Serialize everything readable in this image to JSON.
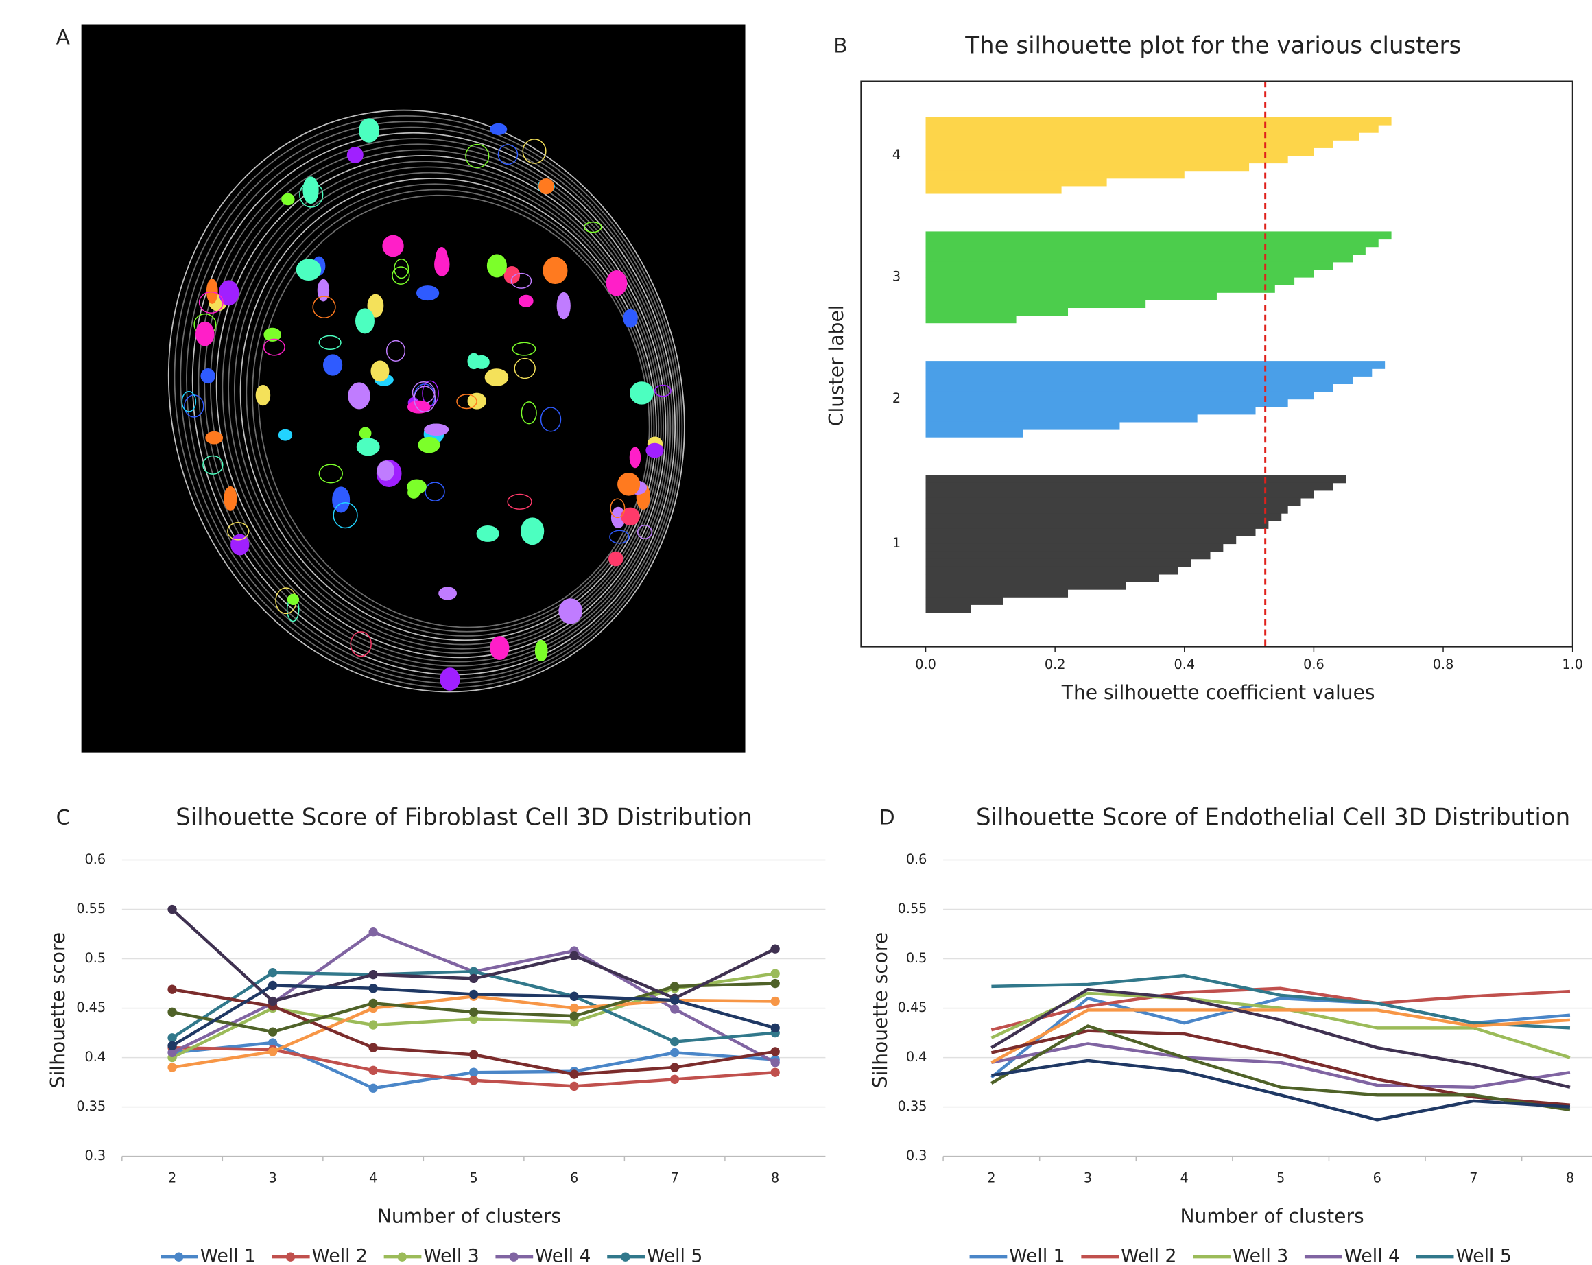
{
  "image_panel": {
    "panel": "A"
  },
  "chart_data": [
    {
      "type": "silhouette",
      "panel": "B",
      "title": "The silhouette plot for the various clusters",
      "x_label": "The silhouette coefficient values",
      "y_label": "Cluster label",
      "xlim": [
        -0.1,
        1.0
      ],
      "xticks": [
        {
          "value": 0,
          "label": "0.0"
        },
        0.2,
        0.4,
        0.6,
        0.8,
        {
          "value": 1,
          "label": "1.0"
        }
      ],
      "average": 0.525,
      "average_color": "#e0201b",
      "clusters": [
        {
          "label": "1",
          "color": "#3f3f3f",
          "values": [
            0.65,
            0.63,
            0.6,
            0.58,
            0.56,
            0.55,
            0.53,
            0.51,
            0.48,
            0.46,
            0.44,
            0.41,
            0.39,
            0.36,
            0.31,
            0.22,
            0.12,
            0.07
          ]
        },
        {
          "label": "2",
          "color": "#4a9fe8",
          "values": [
            0.71,
            0.69,
            0.66,
            0.63,
            0.6,
            0.56,
            0.51,
            0.42,
            0.3,
            0.15
          ]
        },
        {
          "label": "3",
          "color": "#4ccd4c",
          "values": [
            0.72,
            0.7,
            0.68,
            0.66,
            0.63,
            0.6,
            0.57,
            0.54,
            0.45,
            0.34,
            0.22,
            0.14
          ]
        },
        {
          "label": "4",
          "color": "#fdd54a",
          "values": [
            0.72,
            0.7,
            0.67,
            0.63,
            0.6,
            0.56,
            0.5,
            0.4,
            0.28,
            0.21
          ]
        }
      ]
    },
    {
      "type": "line",
      "panel": "C",
      "title": "Silhouette Score of Fibroblast Cell 3D Distribution",
      "x_label": "Number of clusters",
      "y_label": "Silhouette score",
      "markers": true,
      "grid": true,
      "categories": [
        "2",
        "3",
        "4",
        "5",
        "6",
        "7",
        "8"
      ],
      "ylim": [
        0.3,
        0.6
      ],
      "yticks": [
        0.3,
        0.35,
        0.4,
        0.45,
        0.5,
        0.55,
        0.6
      ],
      "series": [
        {
          "name": "Well 1",
          "color": "#4a86c8",
          "values": [
            0.405,
            0.415,
            0.369,
            0.385,
            0.386,
            0.405,
            0.398
          ]
        },
        {
          "name": "Well 2",
          "color": "#c0504d",
          "values": [
            0.41,
            0.408,
            0.387,
            0.377,
            0.371,
            0.378,
            0.385
          ]
        },
        {
          "name": "Well 3",
          "color": "#9bbb59",
          "values": [
            0.4,
            0.45,
            0.433,
            0.439,
            0.436,
            0.47,
            0.485
          ]
        },
        {
          "name": "Well 4",
          "color": "#8064a2",
          "values": [
            0.405,
            0.455,
            0.527,
            0.487,
            0.508,
            0.449,
            0.395
          ]
        },
        {
          "name": "Well 5",
          "color": "#31788b",
          "values": [
            0.42,
            0.486,
            0.484,
            0.487,
            0.462,
            0.416,
            0.425
          ]
        },
        {
          "color": "#f79646",
          "values": [
            0.39,
            0.406,
            0.45,
            0.462,
            0.45,
            0.458,
            0.457
          ]
        },
        {
          "color": "#7b2c2c",
          "values": [
            0.469,
            0.452,
            0.41,
            0.403,
            0.383,
            0.39,
            0.406
          ]
        },
        {
          "color": "#4f6228",
          "values": [
            0.446,
            0.426,
            0.455,
            0.446,
            0.442,
            0.472,
            0.475
          ]
        },
        {
          "color": "#3f3151",
          "values": [
            0.55,
            0.457,
            0.484,
            0.48,
            0.503,
            0.46,
            0.51
          ]
        },
        {
          "color": "#1f3864",
          "values": [
            0.412,
            0.473,
            0.47,
            0.464,
            0.462,
            0.458,
            0.43
          ]
        }
      ]
    },
    {
      "type": "line",
      "panel": "D",
      "title": "Silhouette Score of Endothelial Cell 3D Distribution",
      "x_label": "Number of clusters",
      "y_label": "Silhouette score",
      "markers": false,
      "grid": true,
      "categories": [
        "2",
        "3",
        "4",
        "5",
        "6",
        "7",
        "8"
      ],
      "ylim": [
        0.3,
        0.6
      ],
      "yticks": [
        0.3,
        0.35,
        0.4,
        0.45,
        0.5,
        0.55,
        0.6
      ],
      "series": [
        {
          "name": "Well 1",
          "color": "#4a86c8",
          "values": [
            0.38,
            0.46,
            0.435,
            0.46,
            0.455,
            0.435,
            0.443
          ]
        },
        {
          "name": "Well 2",
          "color": "#c0504d",
          "values": [
            0.428,
            0.452,
            0.466,
            0.47,
            0.455,
            0.462,
            0.467
          ]
        },
        {
          "name": "Well 3",
          "color": "#9bbb59",
          "values": [
            0.42,
            0.465,
            0.46,
            0.45,
            0.43,
            0.43,
            0.4
          ]
        },
        {
          "name": "Well 4",
          "color": "#8064a2",
          "values": [
            0.395,
            0.414,
            0.4,
            0.395,
            0.372,
            0.37,
            0.385
          ]
        },
        {
          "name": "Well 5",
          "color": "#31788b",
          "values": [
            0.472,
            0.474,
            0.483,
            0.463,
            0.455,
            0.435,
            0.43
          ]
        },
        {
          "color": "#f79646",
          "values": [
            0.395,
            0.448,
            0.448,
            0.448,
            0.448,
            0.432,
            0.438
          ]
        },
        {
          "color": "#7b2c2c",
          "values": [
            0.405,
            0.427,
            0.424,
            0.403,
            0.378,
            0.36,
            0.352
          ]
        },
        {
          "color": "#4f6228",
          "values": [
            0.374,
            0.432,
            0.4,
            0.37,
            0.362,
            0.362,
            0.347
          ]
        },
        {
          "color": "#3f3151",
          "values": [
            0.41,
            0.469,
            0.46,
            0.438,
            0.41,
            0.393,
            0.37
          ]
        },
        {
          "color": "#1f3864",
          "values": [
            0.382,
            0.397,
            0.386,
            0.362,
            0.337,
            0.356,
            0.35
          ]
        }
      ]
    }
  ]
}
